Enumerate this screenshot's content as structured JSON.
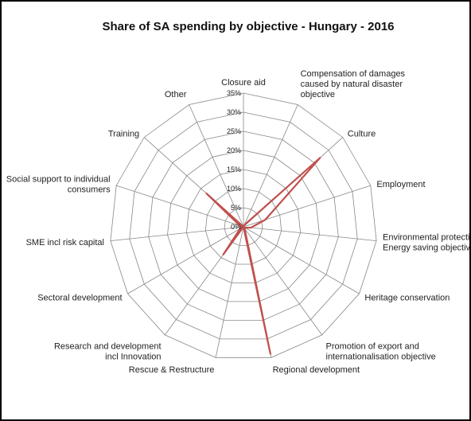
{
  "chart_data": {
    "type": "radar",
    "title": "Share of SA spending by objective - Hungary - 2016",
    "categories": [
      "Closure aid",
      "Compensation of damages caused by natural disaster objective",
      "Culture",
      "Employment",
      "Environmental protection incl Energy saving objective",
      "Heritage conservation",
      "Promotion of export and internationalisation objective",
      "Regional development",
      "Rescue & Restructure",
      "Research and development incl Innovation",
      "Sectoral development",
      "SME incl risk capital",
      "Social support to individual consumers",
      "Training",
      "Other"
    ],
    "category_label_lines": [
      [
        "Closure aid"
      ],
      [
        "Compensation of damages",
        "caused by natural disaster",
        "objective"
      ],
      [
        "Culture"
      ],
      [
        "Employment"
      ],
      [
        "Environmental protection incl",
        "Energy saving objective"
      ],
      [
        "Heritage conservation"
      ],
      [
        "Promotion of export and",
        "internationalisation objective"
      ],
      [
        "Regional development"
      ],
      [
        "Rescue & Restructure"
      ],
      [
        "Research and development",
        "incl Innovation"
      ],
      [
        "Sectoral development"
      ],
      [
        "SME incl risk capital"
      ],
      [
        "Social support to individual",
        "consumers"
      ],
      [
        "Training"
      ],
      [
        "Other"
      ]
    ],
    "series": [
      {
        "values": [
          0,
          0.5,
          27,
          6,
          2,
          0.5,
          0.5,
          34,
          0,
          9,
          1,
          0.5,
          1,
          13,
          0
        ],
        "color": "#c0504d"
      }
    ],
    "rlim": [
      0,
      35
    ],
    "ticks": [
      "0%",
      "5%",
      "10%",
      "15%",
      "20%",
      "25%",
      "30%",
      "35%"
    ],
    "grid": true,
    "legend": "none"
  }
}
